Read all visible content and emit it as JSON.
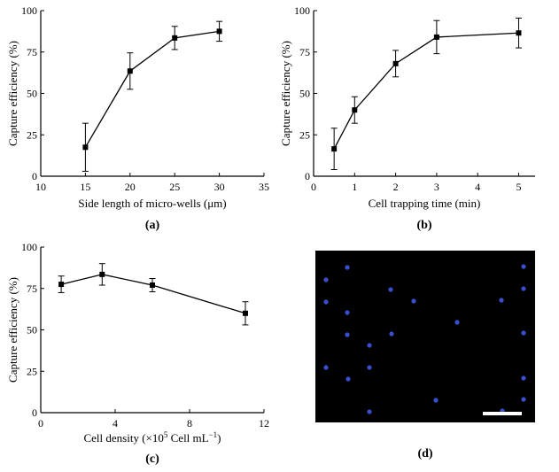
{
  "panels": [
    {
      "id": "a",
      "caption": "(a)",
      "chart_data": {
        "type": "line",
        "xlabel": "Side length of micro-wells (μm)",
        "ylabel": "Capture efficiency (%)",
        "xlim": [
          10,
          35
        ],
        "ylim": [
          0,
          100
        ],
        "xticks": [
          10,
          15,
          20,
          25,
          30,
          35
        ],
        "yticks": [
          0,
          25,
          50,
          75,
          100
        ],
        "series": [
          {
            "x": [
              15,
              20,
              25,
              30
            ],
            "y": [
              17.5,
              63.5,
              83.5,
              87.5
            ],
            "err": [
              14.5,
              11,
              7,
              6
            ]
          }
        ]
      }
    },
    {
      "id": "b",
      "caption": "(b)",
      "chart_data": {
        "type": "line",
        "xlabel": "Cell trapping time (min)",
        "ylabel": "Capture efficiency (%)",
        "xlim": [
          0,
          5.4
        ],
        "ylim": [
          0,
          100
        ],
        "xticks": [
          0,
          1,
          2,
          3,
          4,
          5
        ],
        "yticks": [
          0,
          25,
          50,
          75,
          100
        ],
        "series": [
          {
            "x": [
              0.5,
              1,
              2,
              3,
              5
            ],
            "y": [
              16.5,
              40,
              68,
              84,
              86.5
            ],
            "err": [
              12.5,
              8,
              8,
              10,
              9
            ]
          }
        ]
      }
    },
    {
      "id": "c",
      "caption": "(c)",
      "chart_data": {
        "type": "line",
        "xlabel": "Cell density (×10",
        "xlabel_sup": "5",
        "xlabel_tail": " Cell mL",
        "xlabel_tail_sup": "−1",
        "xlabel_end": ")",
        "ylabel": "Capture efficiency (%)",
        "xlim": [
          0,
          12
        ],
        "ylim": [
          0,
          100
        ],
        "xticks": [
          0,
          4,
          8,
          12
        ],
        "yticks": [
          0,
          25,
          50,
          75,
          100
        ],
        "series": [
          {
            "x": [
              1.1,
              3.3,
              6,
              11
            ],
            "y": [
              77.5,
              83.5,
              77,
              60
            ],
            "err": [
              5,
              6.5,
              4,
              7
            ]
          }
        ]
      }
    }
  ],
  "image_panel": {
    "id": "d",
    "caption": "(d)",
    "background": "#000000",
    "dot_color": "#3a4fd0",
    "scale_bar_color": "#ffffff"
  },
  "colors": {
    "line": "#000000"
  }
}
